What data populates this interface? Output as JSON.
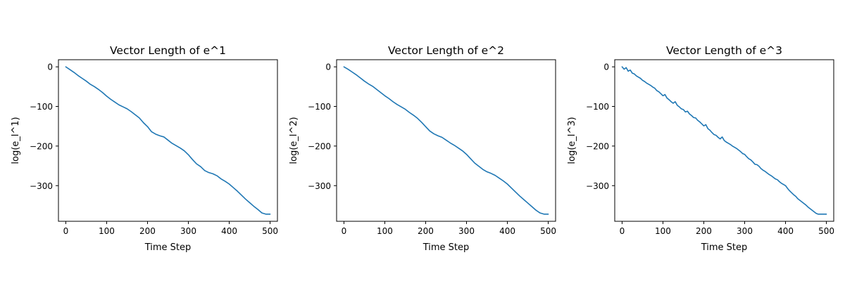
{
  "chart_data": [
    {
      "type": "line",
      "title": "Vector Length of e^1",
      "xlabel": "Time Step",
      "ylabel": "log(e_l^1)",
      "xlim": [
        -18,
        518
      ],
      "ylim": [
        -390,
        18
      ],
      "xticks": [
        0,
        100,
        200,
        300,
        400,
        500
      ],
      "yticks": [
        0,
        -100,
        -200,
        -300
      ],
      "line_color": "#1f77b4",
      "grid": false,
      "series": [
        {
          "x": [
            0,
            10,
            20,
            30,
            40,
            50,
            60,
            70,
            80,
            90,
            100,
            110,
            120,
            130,
            140,
            150,
            160,
            170,
            180,
            190,
            200,
            210,
            220,
            230,
            240,
            250,
            260,
            270,
            280,
            290,
            300,
            310,
            320,
            330,
            340,
            350,
            360,
            370,
            380,
            390,
            400,
            410,
            420,
            430,
            440,
            450,
            460,
            470,
            480,
            490,
            500
          ],
          "y": [
            0,
            -7,
            -14,
            -22,
            -29,
            -36,
            -44,
            -50,
            -57,
            -65,
            -74,
            -82,
            -89,
            -96,
            -101,
            -106,
            -113,
            -121,
            -129,
            -141,
            -151,
            -164,
            -170,
            -174,
            -177,
            -185,
            -193,
            -199,
            -205,
            -212,
            -222,
            -234,
            -245,
            -252,
            -262,
            -267,
            -270,
            -275,
            -283,
            -289,
            -296,
            -305,
            -314,
            -324,
            -334,
            -343,
            -352,
            -360,
            -369,
            -372,
            -372
          ]
        }
      ]
    },
    {
      "type": "line",
      "title": "Vector Length of e^2",
      "xlabel": "Time Step",
      "ylabel": "log(e_l^2)",
      "xlim": [
        -18,
        518
      ],
      "ylim": [
        -390,
        18
      ],
      "xticks": [
        0,
        100,
        200,
        300,
        400,
        500
      ],
      "yticks": [
        0,
        -100,
        -200,
        -300
      ],
      "line_color": "#1f77b4",
      "grid": false,
      "series": [
        {
          "x": [
            0,
            10,
            20,
            30,
            40,
            50,
            60,
            70,
            80,
            90,
            100,
            110,
            120,
            130,
            140,
            150,
            160,
            170,
            180,
            190,
            200,
            210,
            220,
            230,
            240,
            250,
            260,
            270,
            280,
            290,
            300,
            310,
            320,
            330,
            340,
            350,
            360,
            370,
            380,
            390,
            400,
            410,
            420,
            430,
            440,
            450,
            460,
            470,
            480,
            490,
            500
          ],
          "y": [
            0,
            -6,
            -13,
            -20,
            -28,
            -36,
            -43,
            -49,
            -57,
            -65,
            -73,
            -80,
            -88,
            -95,
            -101,
            -107,
            -115,
            -122,
            -130,
            -140,
            -151,
            -162,
            -169,
            -174,
            -178,
            -185,
            -192,
            -198,
            -205,
            -212,
            -221,
            -232,
            -243,
            -251,
            -259,
            -265,
            -269,
            -274,
            -281,
            -288,
            -296,
            -306,
            -316,
            -326,
            -335,
            -344,
            -353,
            -362,
            -369,
            -372,
            -372
          ]
        }
      ]
    },
    {
      "type": "line",
      "title": "Vector Length of e^3",
      "xlabel": "Time Step",
      "ylabel": "log(e_l^3)",
      "xlim": [
        -18,
        518
      ],
      "ylim": [
        -390,
        18
      ],
      "xticks": [
        0,
        100,
        200,
        300,
        400,
        500
      ],
      "yticks": [
        0,
        -100,
        -200,
        -300
      ],
      "line_color": "#1f77b4",
      "grid": false,
      "series": [
        {
          "x": [
            0,
            5,
            10,
            15,
            20,
            25,
            30,
            35,
            40,
            45,
            50,
            55,
            60,
            65,
            70,
            75,
            80,
            85,
            90,
            95,
            100,
            105,
            110,
            115,
            120,
            125,
            130,
            135,
            140,
            145,
            150,
            155,
            160,
            165,
            170,
            175,
            180,
            185,
            190,
            195,
            200,
            205,
            210,
            215,
            220,
            225,
            230,
            235,
            240,
            245,
            250,
            255,
            260,
            265,
            270,
            275,
            280,
            285,
            290,
            295,
            300,
            305,
            310,
            315,
            320,
            325,
            330,
            335,
            340,
            345,
            350,
            355,
            360,
            365,
            370,
            375,
            380,
            385,
            390,
            395,
            400,
            405,
            410,
            415,
            420,
            425,
            430,
            435,
            440,
            445,
            450,
            455,
            460,
            465,
            470,
            475,
            480,
            485,
            490,
            495,
            500
          ],
          "y": [
            0,
            -6,
            -2,
            -11,
            -8,
            -16,
            -18,
            -23,
            -26,
            -29,
            -34,
            -37,
            -41,
            -44,
            -47,
            -51,
            -54,
            -60,
            -63,
            -68,
            -73,
            -70,
            -79,
            -83,
            -88,
            -92,
            -88,
            -97,
            -101,
            -106,
            -108,
            -114,
            -112,
            -119,
            -123,
            -128,
            -129,
            -135,
            -139,
            -144,
            -149,
            -146,
            -156,
            -160,
            -166,
            -171,
            -173,
            -178,
            -182,
            -177,
            -186,
            -190,
            -193,
            -196,
            -200,
            -203,
            -206,
            -210,
            -214,
            -219,
            -221,
            -227,
            -232,
            -235,
            -240,
            -246,
            -247,
            -251,
            -257,
            -261,
            -264,
            -268,
            -272,
            -275,
            -279,
            -283,
            -285,
            -290,
            -294,
            -297,
            -300,
            -307,
            -313,
            -318,
            -323,
            -327,
            -333,
            -337,
            -341,
            -345,
            -349,
            -354,
            -358,
            -362,
            -366,
            -370,
            -372,
            -372,
            -372,
            -372,
            -372
          ]
        }
      ]
    }
  ]
}
